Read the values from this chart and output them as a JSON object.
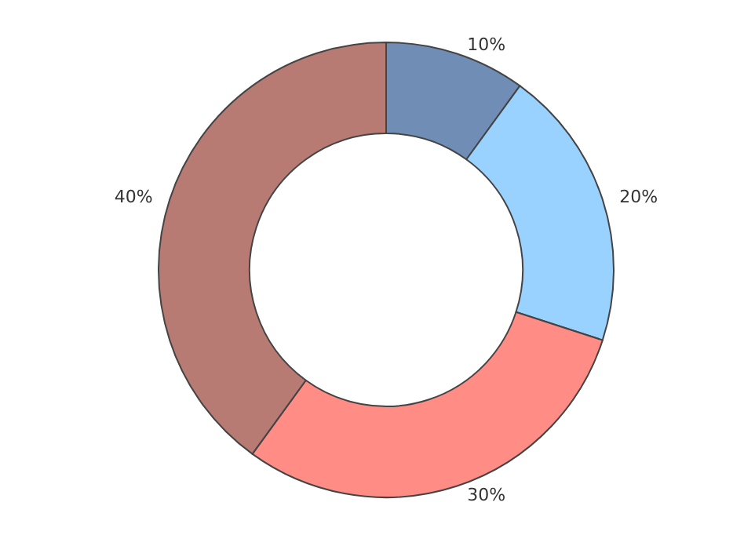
{
  "chart_data": {
    "type": "donut",
    "categories": [
      null,
      null,
      null,
      null
    ],
    "values": [
      10,
      20,
      30,
      40
    ],
    "colors": [
      "#6f8db5",
      "#99d1ff",
      "#ff8c85",
      "#b87b74"
    ],
    "value_labels": [
      "10%",
      "20%",
      "30%",
      "40%"
    ]
  }
}
